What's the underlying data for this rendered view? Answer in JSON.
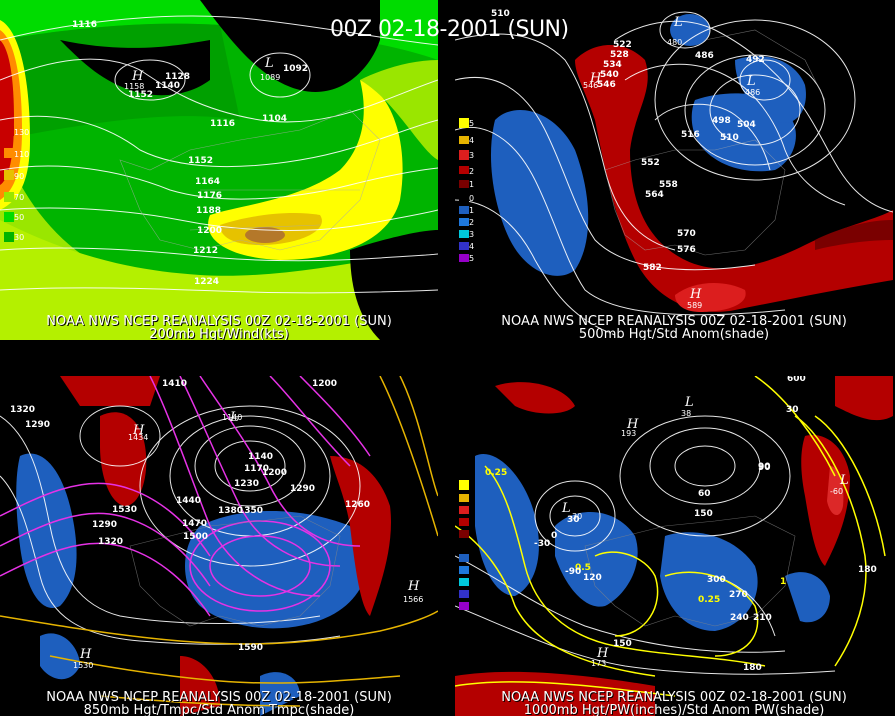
{
  "title": "00Z 02-18-2001 (SUN)",
  "panels": [
    {
      "caption_line1": "NOAA NWS NCEP REANALYSIS 00Z 02-18-2001 (SUN)",
      "caption_line2": "200mb Hgt/Wind(kts)",
      "legend": [
        "130",
        "110",
        "90",
        "70",
        "50",
        "30"
      ],
      "contour_labels": [
        "1116",
        "1128",
        "1140",
        "1152",
        "1092",
        "1104",
        "1116",
        "1152",
        "1164",
        "1176",
        "1188",
        "1200",
        "1212",
        "1224"
      ],
      "centers": [
        {
          "type": "H",
          "value": "1158"
        },
        {
          "type": "L",
          "value": "1089"
        }
      ],
      "colors": [
        "#c80000",
        "#ff8c00",
        "#e6c200",
        "#ffff00",
        "#9ae600",
        "#00b400",
        "#00dc00"
      ]
    },
    {
      "caption_line1": "NOAA NWS NCEP REANALYSIS 00Z 02-18-2001 (SUN)",
      "caption_line2": "500mb Hgt/Std Anom(shade)",
      "legend": [
        "5",
        "4",
        "3",
        "2",
        "1",
        "0",
        "1",
        "2",
        "3",
        "4",
        "5"
      ],
      "contour_labels": [
        "510",
        "522",
        "528",
        "534",
        "540",
        "546",
        "552",
        "558",
        "564",
        "570",
        "576",
        "582",
        "492",
        "498",
        "504",
        "510",
        "516",
        "486"
      ],
      "centers": [
        {
          "type": "L",
          "value": "480"
        },
        {
          "type": "H",
          "value": "546"
        },
        {
          "type": "L",
          "value": "486"
        },
        {
          "type": "H",
          "value": "589"
        }
      ],
      "colors": [
        "#b40000",
        "#1e5fbe"
      ]
    },
    {
      "caption_line1": "NOAA NWS NCEP REANALYSIS 00Z 02-18-2001 (SUN)",
      "caption_line2": "850mb Hgt/Tmpc/Std Anom Tmpc(shade)",
      "contour_labels": [
        "1410",
        "1320",
        "1290",
        "1440",
        "1470",
        "1500",
        "1530",
        "1380",
        "1350",
        "1140",
        "1170",
        "1200",
        "1230",
        "1260",
        "1290",
        "1200",
        "1320",
        "1290",
        "1590"
      ],
      "centers": [
        {
          "type": "H",
          "value": "1434"
        },
        {
          "type": "L",
          "value": "1140"
        },
        {
          "type": "H",
          "value": "1566"
        },
        {
          "type": "H",
          "value": "1530"
        }
      ],
      "colors": [
        "#e632e6",
        "#e6b400",
        "#b40000",
        "#1e5fbe"
      ]
    },
    {
      "caption_line1": "NOAA NWS NCEP REANALYSIS 00Z 02-18-2001 (SUN)",
      "caption_line2": "1000mb Hgt/PW(inches)/Std Anom PW(shade)",
      "contour_labels": [
        "0.25",
        "0.5",
        "1",
        "0.25",
        "30",
        "0",
        "-30",
        "-90",
        "120",
        "60",
        "90",
        "150",
        "210",
        "240",
        "270",
        "300",
        "180",
        "150",
        "180",
        "90",
        "600",
        "30"
      ],
      "centers": [
        {
          "type": "L",
          "value": "30"
        },
        {
          "type": "L",
          "value": "38"
        },
        {
          "type": "H",
          "value": "193"
        },
        {
          "type": "H",
          "value": "173"
        },
        {
          "type": "L",
          "value": "-60"
        }
      ],
      "colors": [
        "#ffff00",
        "#b40000",
        "#1e5fbe"
      ]
    }
  ]
}
